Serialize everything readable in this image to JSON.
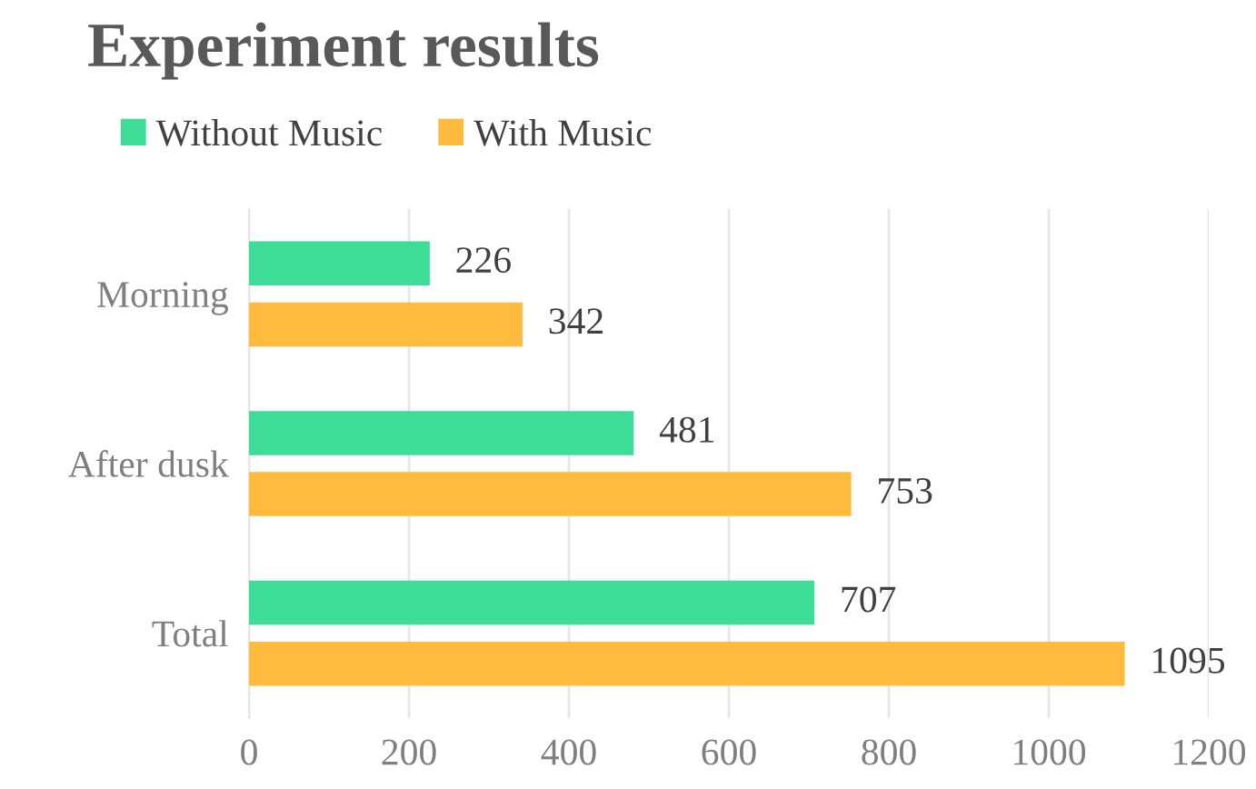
{
  "chart_data": {
    "type": "bar",
    "orientation": "horizontal",
    "title": "Experiment results",
    "categories": [
      "Morning",
      "After dusk",
      "Total"
    ],
    "series": [
      {
        "name": "Without Music",
        "color": "#3ddc97",
        "values": [
          226,
          481,
          707
        ]
      },
      {
        "name": "With Music",
        "color": "#ffbb3d",
        "values": [
          342,
          753,
          1095
        ]
      }
    ],
    "xlim": [
      0,
      1200
    ],
    "xticks": [
      0,
      200,
      400,
      600,
      800,
      1000,
      1200
    ],
    "grid": "x",
    "legend": "top left",
    "data_labels": true
  }
}
